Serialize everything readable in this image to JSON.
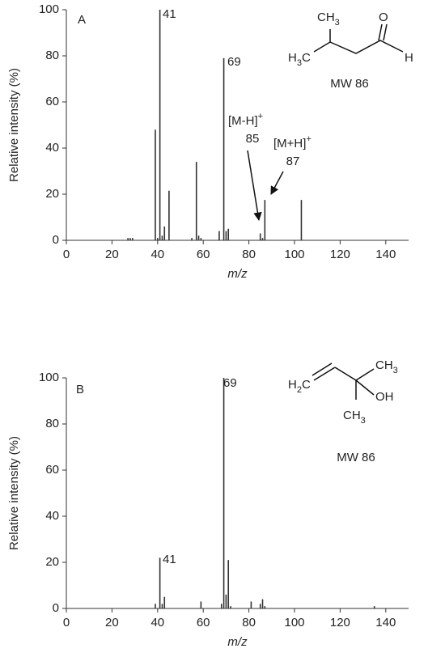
{
  "chart_data": [
    {
      "type": "bar",
      "panel": "A",
      "x": [
        27,
        28,
        29,
        39,
        40,
        41,
        42,
        43,
        45,
        55,
        57,
        58,
        59,
        67,
        69,
        70,
        71,
        85,
        86,
        87,
        103
      ],
      "values": [
        1,
        1,
        1,
        48,
        1,
        100,
        2,
        6,
        21.5,
        1,
        34,
        2,
        1,
        4,
        79,
        4,
        5,
        3,
        1,
        17.5,
        17.5
      ],
      "xlim": [
        0,
        150
      ],
      "ylim": [
        0,
        100
      ],
      "xticks": [
        0,
        20,
        40,
        60,
        80,
        100,
        120,
        140
      ],
      "yticks": [
        0,
        20,
        40,
        60,
        80,
        100
      ],
      "xlabel": "m/z",
      "ylabel": "Relative intensity (%)",
      "color": "#333333",
      "annotations": [
        {
          "text": "41"
        },
        {
          "text": "69"
        },
        {
          "text": "[M-H]",
          "sup": "+"
        },
        {
          "text": "85"
        },
        {
          "text": "[M+H]",
          "sup": "+"
        },
        {
          "text": "87"
        }
      ],
      "structure": {
        "labels": [
          "CH3",
          "H3C",
          "O",
          "H"
        ],
        "mw": "MW 86"
      }
    },
    {
      "type": "bar",
      "panel": "B",
      "x": [
        39,
        41,
        42,
        43,
        59,
        68,
        69,
        70,
        71,
        72,
        81,
        85,
        86,
        87,
        135
      ],
      "values": [
        2,
        22,
        2,
        5,
        3,
        2,
        100,
        6,
        21,
        1,
        3,
        2,
        4,
        1,
        1
      ],
      "xlim": [
        0,
        150
      ],
      "ylim": [
        0,
        100
      ],
      "xticks": [
        0,
        20,
        40,
        60,
        80,
        100,
        120,
        140
      ],
      "yticks": [
        0,
        20,
        40,
        60,
        80,
        100
      ],
      "xlabel": "m/z",
      "ylabel": "Relative intensity (%)",
      "color": "#333333",
      "annotations": [
        {
          "text": "69"
        },
        {
          "text": "41"
        }
      ],
      "structure": {
        "labels": [
          "H2C",
          "CH3",
          "OH",
          "CH3"
        ],
        "mw": "MW 86"
      }
    }
  ]
}
